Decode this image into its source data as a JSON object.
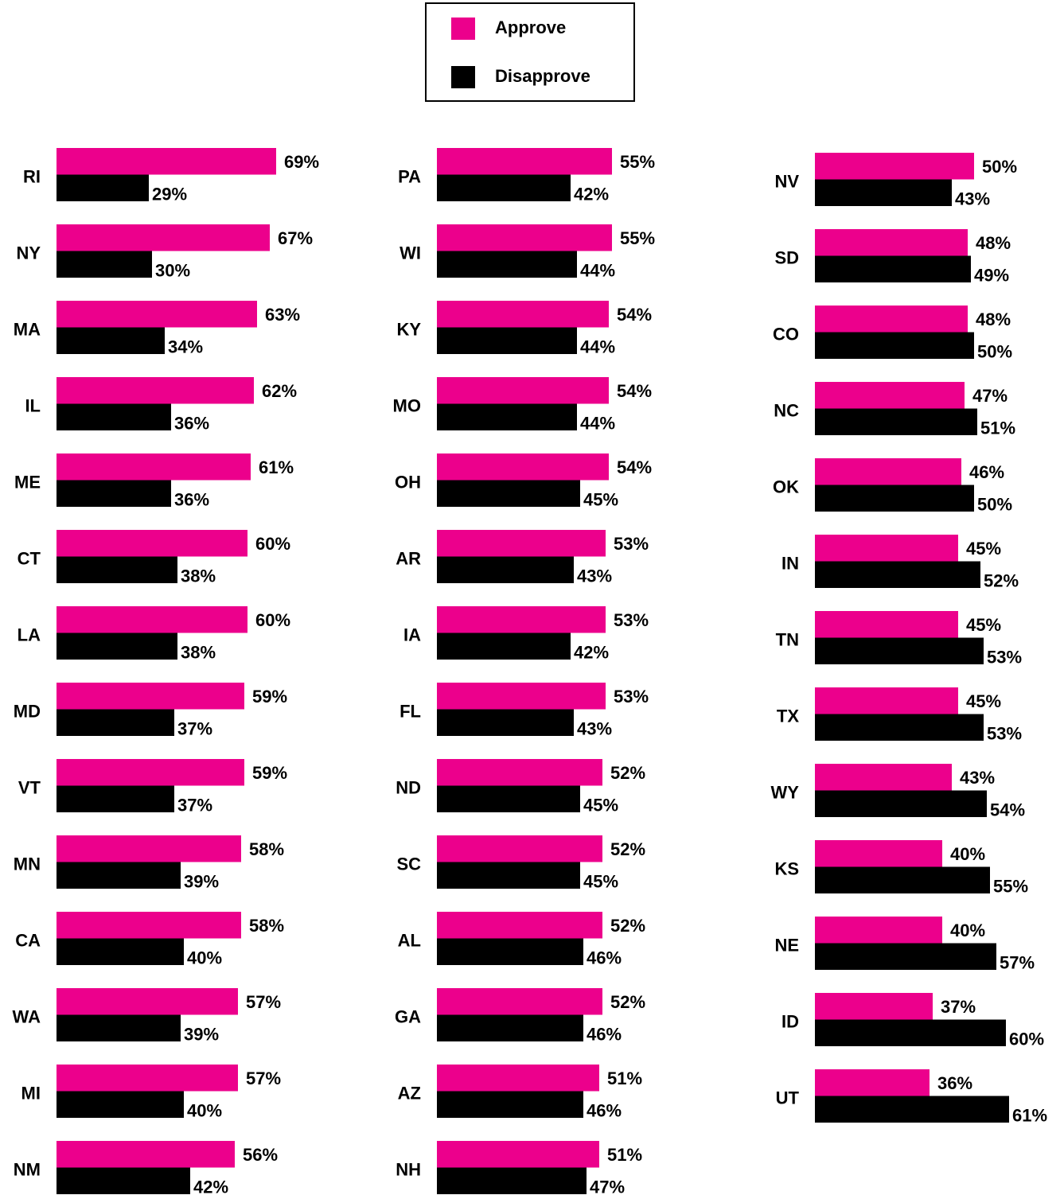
{
  "chart_data": [
    {
      "type": "bar",
      "orientation": "horizontal",
      "categories": [
        "RI",
        "NY",
        "MA",
        "IL",
        "ME",
        "CT",
        "LA",
        "MD",
        "VT",
        "MN",
        "CA",
        "WA",
        "MI",
        "NM"
      ],
      "series": [
        {
          "name": "Approve",
          "color": "#ec008c",
          "values": [
            69,
            67,
            63,
            62,
            61,
            60,
            60,
            59,
            59,
            58,
            58,
            57,
            57,
            56
          ],
          "value_labels": [
            "69%",
            "67%",
            "63%",
            "62%",
            "61%",
            "60%",
            "60%",
            "59%",
            "59%",
            "58%",
            "58%",
            "57%",
            "57%",
            "56%"
          ]
        },
        {
          "name": "Disapprove",
          "color": "#000000",
          "values": [
            29,
            30,
            34,
            36,
            36,
            38,
            38,
            37,
            37,
            39,
            40,
            39,
            40,
            42
          ],
          "value_labels": [
            "29%",
            "30%",
            "34%",
            "36%",
            "36%",
            "38%",
            "38%",
            "37%",
            "37%",
            "39%",
            "40%",
            "39%",
            "40%",
            "42%"
          ]
        }
      ]
    },
    {
      "type": "bar",
      "orientation": "horizontal",
      "categories": [
        "PA",
        "WI",
        "KY",
        "MO",
        "OH",
        "AR",
        "IA",
        "FL",
        "ND",
        "SC",
        "AL",
        "GA",
        "AZ",
        "NH"
      ],
      "series": [
        {
          "name": "Approve",
          "color": "#ec008c",
          "values": [
            55,
            55,
            54,
            54,
            54,
            53,
            53,
            53,
            52,
            52,
            52,
            52,
            51,
            51
          ],
          "value_labels": [
            "55%",
            "55%",
            "54%",
            "54%",
            "54%",
            "53%",
            "53%",
            "53%",
            "52%",
            "52%",
            "52%",
            "52%",
            "51%",
            "51%"
          ]
        },
        {
          "name": "Disapprove",
          "color": "#000000",
          "values": [
            42,
            44,
            44,
            44,
            45,
            43,
            42,
            43,
            45,
            45,
            46,
            46,
            46,
            47
          ],
          "value_labels": [
            "42%",
            "44%",
            "44%",
            "44%",
            "45%",
            "43%",
            "42%",
            "43%",
            "45%",
            "45%",
            "46%",
            "46%",
            "46%",
            "47%"
          ]
        }
      ]
    },
    {
      "type": "bar",
      "orientation": "horizontal",
      "categories": [
        "NV",
        "SD",
        "CO",
        "NC",
        "OK",
        "IN",
        "TN",
        "TX",
        "WY",
        "KS",
        "NE",
        "ID",
        "UT"
      ],
      "series": [
        {
          "name": "Approve",
          "color": "#ec008c",
          "values": [
            50,
            48,
            48,
            47,
            46,
            45,
            45,
            45,
            43,
            40,
            40,
            37,
            36
          ],
          "value_labels": [
            "50%",
            "48%",
            "48%",
            "47%",
            "46%",
            "45%",
            "45%",
            "45%",
            "43%",
            "40%",
            "40%",
            "37%",
            "36%"
          ]
        },
        {
          "name": "Disapprove",
          "color": "#000000",
          "values": [
            43,
            49,
            50,
            51,
            50,
            52,
            53,
            53,
            54,
            55,
            57,
            60,
            61
          ],
          "value_labels": [
            "43%",
            "49%",
            "50%",
            "51%",
            "50%",
            "52%",
            "53%",
            "53%",
            "54%",
            "55%",
            "57%",
            "60%",
            "61%"
          ]
        }
      ]
    }
  ]
}
